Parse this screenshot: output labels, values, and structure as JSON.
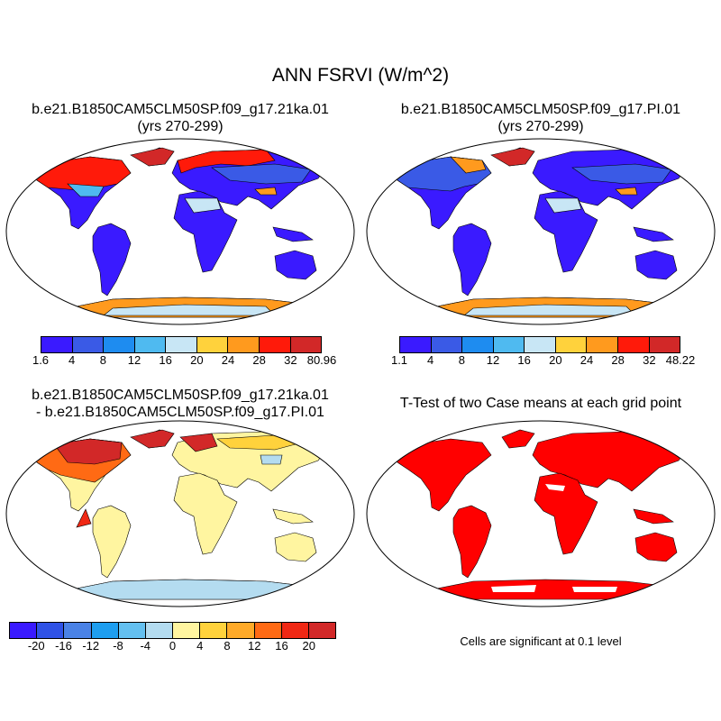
{
  "figure": {
    "title": "ANN FSRVI (W/m^2)"
  },
  "panels": {
    "case1": {
      "title_line1": "b.e21.B1850CAM5CLM50SP.f09_g17.21ka.01",
      "title_line2": "(yrs 270-299)",
      "colorbar": {
        "colors": [
          "#3a1aff",
          "#3a5ae6",
          "#1e8cf0",
          "#4fbaf0",
          "#c8e6f5",
          "#ffd23c",
          "#ff9a1e",
          "#ff1a0a",
          "#d22828"
        ],
        "labels": [
          "1.6",
          "4",
          "8",
          "12",
          "16",
          "20",
          "24",
          "28",
          "32",
          "80.96"
        ]
      }
    },
    "case2": {
      "title_line1": "b.e21.B1850CAM5CLM50SP.f09_g17.PI.01",
      "title_line2": "(yrs 270-299)",
      "colorbar": {
        "colors": [
          "#3a1aff",
          "#3a5ae6",
          "#1e8cf0",
          "#4fbaf0",
          "#c8e6f5",
          "#ffd23c",
          "#ff9a1e",
          "#ff1a0a",
          "#d22828"
        ],
        "labels": [
          "1.1",
          "4",
          "8",
          "12",
          "16",
          "20",
          "24",
          "28",
          "32",
          "48.22"
        ]
      }
    },
    "diff": {
      "title_line1": "b.e21.B1850CAM5CLM50SP.f09_g17.21ka.01",
      "title_line2": "- b.e21.B1850CAM5CLM50SP.f09_g17.PI.01",
      "colorbar": {
        "colors": [
          "#3a1aff",
          "#2f52e6",
          "#4a82e6",
          "#1e9ef0",
          "#64c0f0",
          "#b4dcf0",
          "#fff5a0",
          "#ffd23c",
          "#ffaa28",
          "#ff6a14",
          "#f02814",
          "#d22828"
        ],
        "labels": [
          "-20",
          "-16",
          "-12",
          "-8",
          "-4",
          "0",
          "4",
          "8",
          "12",
          "16",
          "20"
        ]
      }
    },
    "ttest": {
      "title": "T-Test of two Case means at each grid point",
      "note": "Cells are significant at 0.1 level"
    }
  }
}
